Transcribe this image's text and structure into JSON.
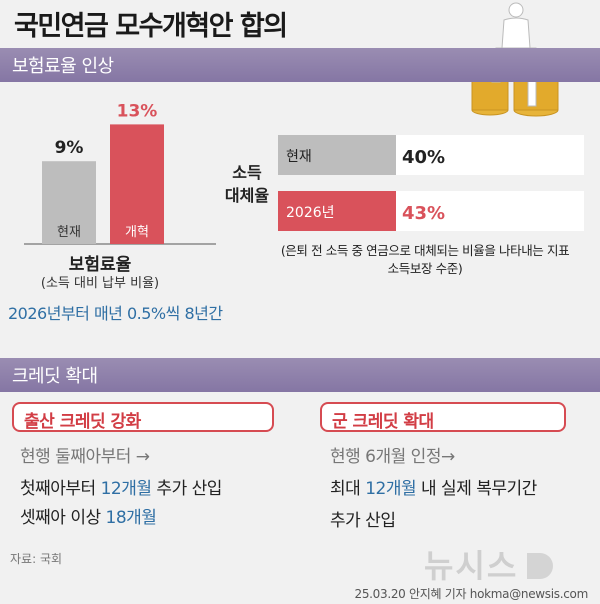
{
  "title": "국민연금 모수개혁안 합의",
  "section1": {
    "header": "보험료율 인상"
  },
  "chart_data": [
    {
      "type": "bar",
      "title": "",
      "xlabel": "보험료율",
      "categories": [
        "현재",
        "개혁"
      ],
      "values": [
        9,
        13
      ],
      "value_labels": [
        "9%",
        "13%"
      ],
      "colors": [
        "#bdbdbd",
        "#d9525b"
      ],
      "value_label_colors": [
        "#222222",
        "#d9525b"
      ],
      "ylim": [
        0,
        14
      ]
    },
    {
      "type": "bar",
      "orientation": "horizontal",
      "ylabel": "소득 대체율",
      "categories": [
        "현재",
        "2026년"
      ],
      "values": [
        40,
        43
      ],
      "value_labels": [
        "40%",
        "43%"
      ],
      "colors": [
        "#bdbdbd",
        "#d9525b"
      ],
      "value_label_colors": [
        "#222222",
        "#d9525b"
      ]
    }
  ],
  "insurance": {
    "caption": "보험료율",
    "subcaption": "(소득 대비 납부 비율)",
    "note": "2026년부터 매년 0.5%씩 8년간"
  },
  "replacement": {
    "label_line1": "소득",
    "label_line2": "대체율",
    "note_line1": "(은퇴 전 소득 중 연금으로 대체되는 비율을 나타내는 지표",
    "note_line2": "소득보장 수준)"
  },
  "section2": {
    "header": "크레딧 확대"
  },
  "credit_left": {
    "title": "출산 크레딧 강화",
    "line1": "현행 둘째아부터 →",
    "line2_a": "첫째아부터 ",
    "line2_b": "12개월",
    "line2_c": " 추가 산입",
    "line3_a": "셋째아 이상 ",
    "line3_b": "18개월"
  },
  "credit_right": {
    "title": "군 크레딧 확대",
    "line1": "현행 6개월 인정→",
    "line2_a": "최대 ",
    "line2_b": "12개월",
    "line2_c": " 내 실제 복무기간",
    "line3": "추가 산입"
  },
  "footer": {
    "source": "자료: 국회",
    "logo": "뉴시스",
    "credit": "25.03.20 안지혜 기자 hokma@newsis.com"
  }
}
